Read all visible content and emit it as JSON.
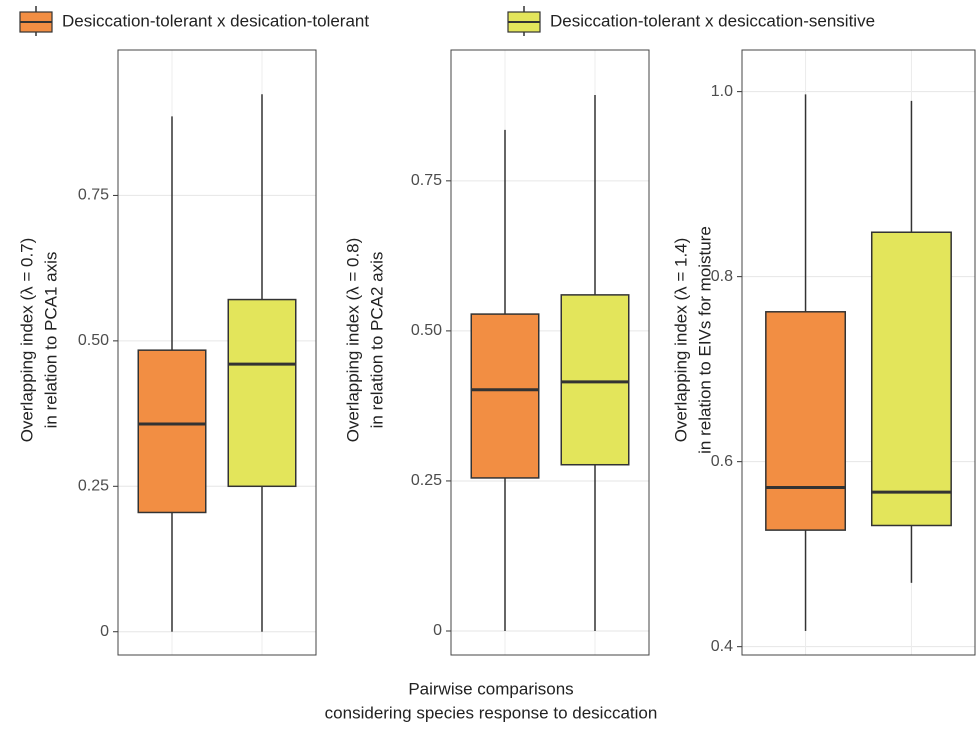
{
  "legend": [
    {
      "name": "Desiccation-tolerant x desication-tolerant",
      "color": "#f28e43"
    },
    {
      "name": "Desiccation-tolerant x desiccation-sensitive",
      "color": "#e3e55b"
    }
  ],
  "x_label": [
    "Pairwise comparisons",
    "considering species response to desiccation"
  ],
  "chart_data": [
    {
      "type": "box",
      "y_label": [
        "Overlapping index (λ = 0.7)",
        "in relation to PCA1 axis"
      ],
      "ylim": [
        -0.04,
        1.0
      ],
      "yticks": [
        0,
        0.25,
        {
          "value": 0.5,
          "label": "0.50"
        },
        0.75
      ],
      "boxes": [
        {
          "min": 0,
          "q1": 0.205,
          "median": 0.357,
          "q3": 0.484,
          "max": 0.886
        },
        {
          "min": 0,
          "q1": 0.25,
          "median": 0.46,
          "q3": 0.571,
          "max": 0.924
        }
      ]
    },
    {
      "type": "box",
      "y_label": [
        "Overlapping index (λ = 0.8)",
        "in relation to PCA2 axis"
      ],
      "ylim": [
        -0.04,
        0.968
      ],
      "yticks": [
        0,
        0.25,
        {
          "value": 0.5,
          "label": "0.50"
        },
        0.75
      ],
      "boxes": [
        {
          "min": 0,
          "q1": 0.255,
          "median": 0.402,
          "q3": 0.528,
          "max": 0.835
        },
        {
          "min": 0,
          "q1": 0.277,
          "median": 0.415,
          "q3": 0.56,
          "max": 0.893
        }
      ]
    },
    {
      "type": "box",
      "y_label": [
        "Overlapping index (λ = 1.4)",
        "in relation to EIVs for moisture"
      ],
      "ylim": [
        0.391,
        1.045
      ],
      "yticks": [
        0.4,
        0.6,
        0.8,
        {
          "value": 1.0,
          "label": "1.0"
        }
      ],
      "boxes": [
        {
          "min": 0.417,
          "q1": 0.526,
          "median": 0.572,
          "q3": 0.762,
          "max": 0.997
        },
        {
          "min": 0.469,
          "q1": 0.531,
          "median": 0.567,
          "q3": 0.848,
          "max": 0.99
        }
      ]
    }
  ]
}
